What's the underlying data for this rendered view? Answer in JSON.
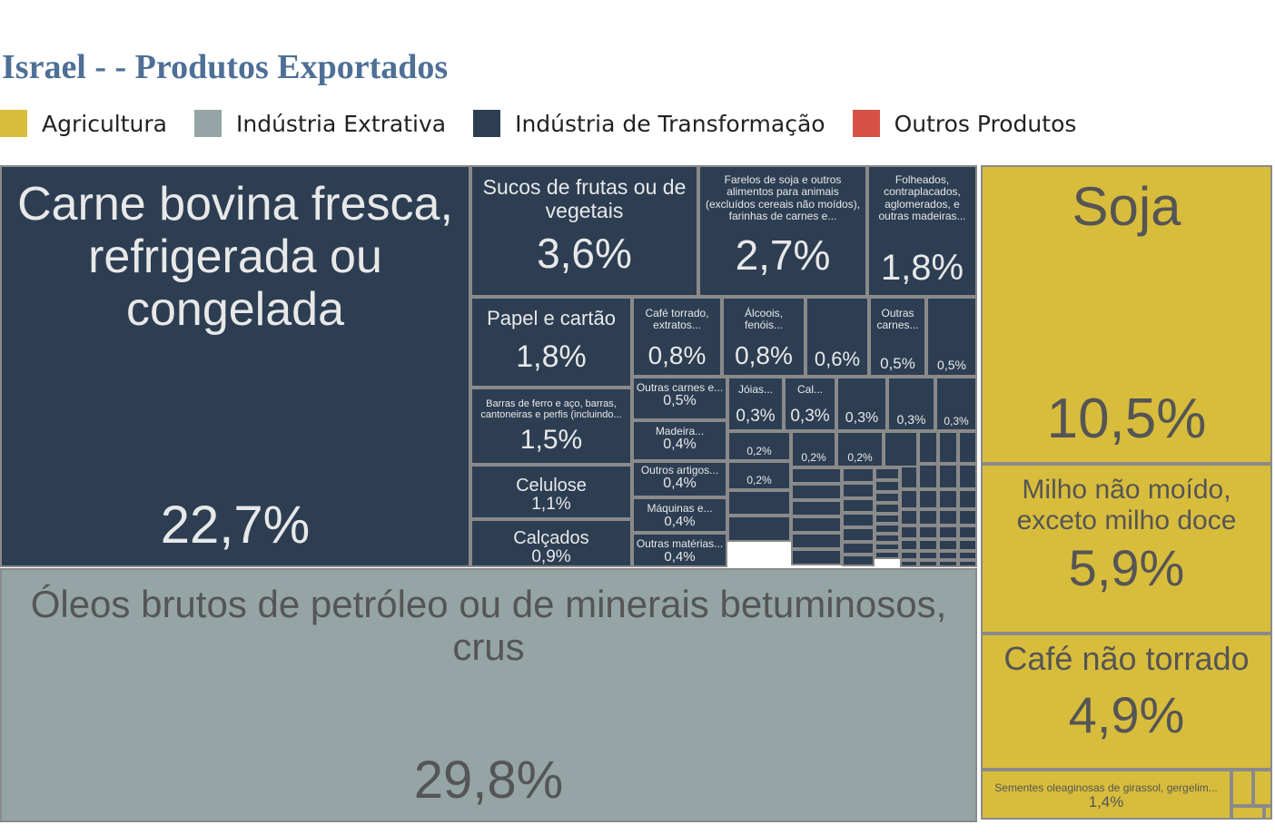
{
  "title": "Israel - - Produtos Exportados",
  "legend": [
    {
      "label": "Agricultura",
      "color": "#d8bd3c"
    },
    {
      "label": "Indústria Extrativa",
      "color": "#95a4a4"
    },
    {
      "label": "Indústria de Transformação",
      "color": "#2d3e53"
    },
    {
      "label": "Outros Produtos",
      "color": "#d65247"
    }
  ],
  "chart_data": {
    "type": "treemap",
    "title": "Israel - - Produtos Exportados",
    "unit": "% of exports",
    "series": [
      {
        "name": "Indústria Extrativa",
        "color": "#95a4a4",
        "items": [
          {
            "label": "Óleos brutos de petróleo ou de minerais betuminosos, crus",
            "value_text": "29,8%",
            "value": 29.8
          }
        ]
      },
      {
        "name": "Indústria de Transformação",
        "color": "#2d3e53",
        "items": [
          {
            "label": "Carne bovina fresca, refrigerada ou congelada",
            "value_text": "22,7%",
            "value": 22.7
          },
          {
            "label": "Sucos de frutas ou de vegetais",
            "value_text": "3,6%",
            "value": 3.6
          },
          {
            "label": "Farelos de soja e outros alimentos para animais (excluídos cereais não moídos), farinhas de carnes e...",
            "value_text": "2,7%",
            "value": 2.7
          },
          {
            "label": "Folheados, contraplacados, aglomerados, e outras madeiras...",
            "value_text": "1,8%",
            "value": 1.8
          },
          {
            "label": "Papel e cartão",
            "value_text": "1,8%",
            "value": 1.8
          },
          {
            "label": "Barras de ferro e aço, barras, cantoneiras e perfis (incluindo...",
            "value_text": "1,5%",
            "value": 1.5
          },
          {
            "label": "Celulose",
            "value_text": "1,1%",
            "value": 1.1
          },
          {
            "label": "Calçados",
            "value_text": "0,9%",
            "value": 0.9
          },
          {
            "label": "Café torrado, extratos...",
            "value_text": "0,8%",
            "value": 0.8
          },
          {
            "label": "Álcoois, fenóis...",
            "value_text": "0,8%",
            "value": 0.8
          },
          {
            "label": "",
            "value_text": "0,6%",
            "value": 0.6
          },
          {
            "label": "Outras carnes...",
            "value_text": "0,5%",
            "value": 0.5
          },
          {
            "label": "",
            "value_text": "0,5%",
            "value": 0.5
          },
          {
            "label": "Outras carnes e...",
            "value_text": "0,5%",
            "value": 0.5
          },
          {
            "label": "Madeira...",
            "value_text": "0,4%",
            "value": 0.4
          },
          {
            "label": "Outros artigos...",
            "value_text": "0,4%",
            "value": 0.4
          },
          {
            "label": "Máquinas e...",
            "value_text": "0,4%",
            "value": 0.4
          },
          {
            "label": "Outras matérias...",
            "value_text": "0,4%",
            "value": 0.4
          },
          {
            "label": "Jóias...",
            "value_text": "0,3%",
            "value": 0.3
          },
          {
            "label": "Cal...",
            "value_text": "0,3%",
            "value": 0.3
          },
          {
            "label": "",
            "value_text": "0,3%",
            "value": 0.3
          },
          {
            "label": "",
            "value_text": "0,3%",
            "value": 0.3
          },
          {
            "label": "",
            "value_text": "0,3%",
            "value": 0.3
          },
          {
            "label": "",
            "value_text": "0,2%",
            "value": 0.2
          },
          {
            "label": "",
            "value_text": "0,2%",
            "value": 0.2
          },
          {
            "label": "",
            "value_text": "0,2%",
            "value": 0.2
          },
          {
            "label": "",
            "value_text": "0,2%",
            "value": 0.2
          }
        ]
      },
      {
        "name": "Agricultura",
        "color": "#d8bd3c",
        "items": [
          {
            "label": "Soja",
            "value_text": "10,5%",
            "value": 10.5
          },
          {
            "label": "Milho não moído, exceto milho doce",
            "value_text": "5,9%",
            "value": 5.9
          },
          {
            "label": "Café não torrado",
            "value_text": "4,9%",
            "value": 4.9
          },
          {
            "label": "Sementes oleaginosas de girassol, gergelim...",
            "value_text": "1,4%",
            "value": 1.4
          }
        ]
      }
    ]
  }
}
